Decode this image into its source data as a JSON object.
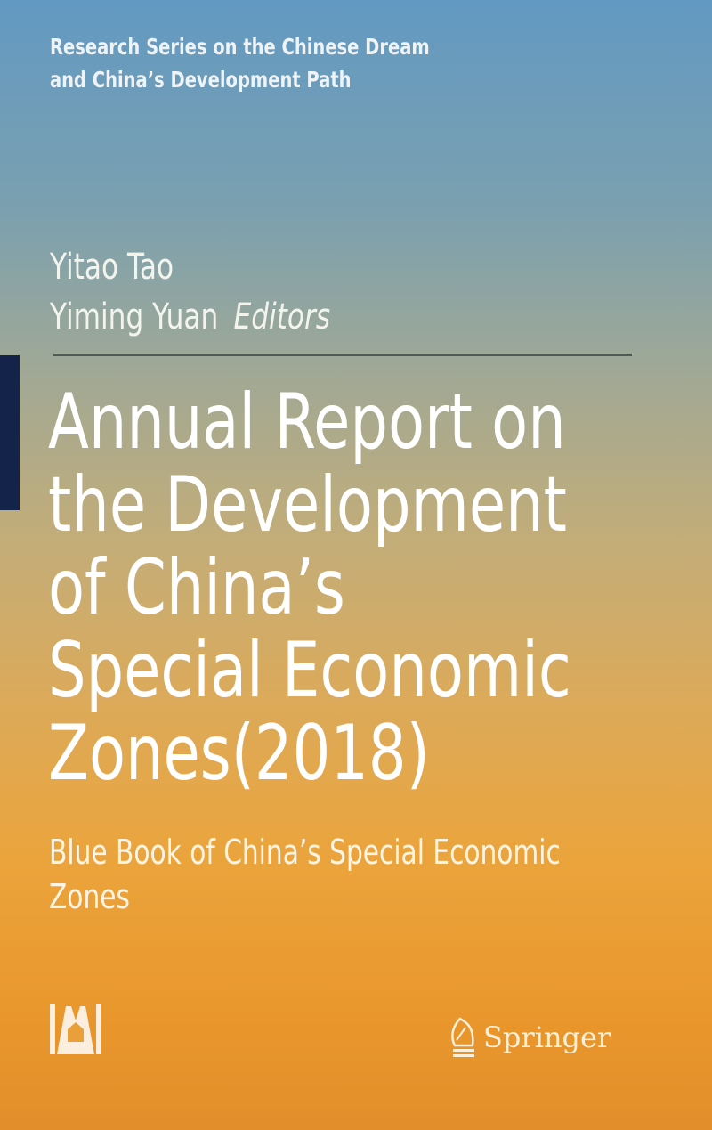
{
  "series": [
    "Research Series on the Chinese Dream",
    "and China’s Development Path"
  ],
  "authors": {
    "names": [
      "Yitao Tao",
      "Yiming Yuan"
    ],
    "role": "Editors"
  },
  "title": [
    "Annual Report on",
    "the Development",
    "of China’s",
    "Special Economic",
    "Zones(2018)"
  ],
  "subtitle": [
    "Blue Book of China’s Special Economic",
    "Zones"
  ],
  "co_publisher_logo": "SSAP",
  "publisher": {
    "name": "Springer",
    "icon": "chess-knight-icon"
  },
  "colors": {
    "top": "#6299c2",
    "bottom": "#e28e2b",
    "tab": "#13234a"
  }
}
